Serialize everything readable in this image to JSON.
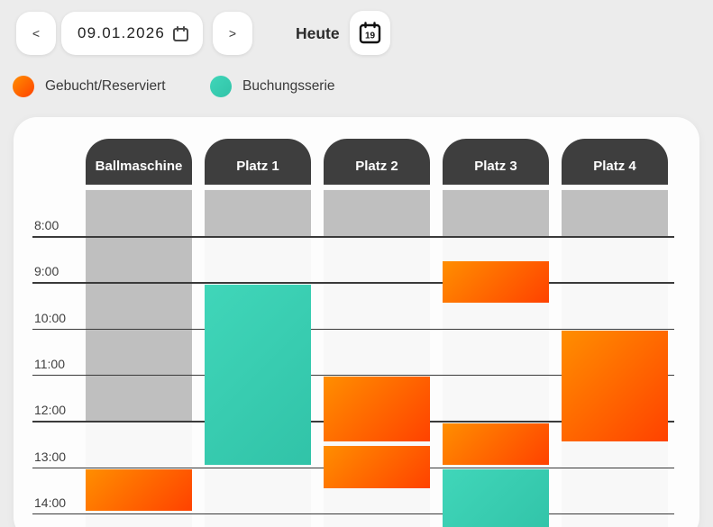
{
  "topbar": {
    "prev_label": "<",
    "next_label": ">",
    "date_value": "09.01.2026",
    "today_label": "Heute",
    "today_day_number": "19"
  },
  "legend": {
    "items": [
      {
        "label": "Gebucht/Reserviert",
        "kind": "booked"
      },
      {
        "label": "Buchungsserie",
        "kind": "series"
      }
    ]
  },
  "schedule": {
    "columns": [
      {
        "label": "Ballmaschine"
      },
      {
        "label": "Platz 1"
      },
      {
        "label": "Platz 2"
      },
      {
        "label": "Platz 3"
      },
      {
        "label": "Platz 4"
      }
    ],
    "time_labels": [
      "8:00",
      "9:00",
      "10:00",
      "11:00",
      "12:00",
      "13:00",
      "14:00"
    ],
    "blocks": [
      {
        "column": 0,
        "kind": "blocked",
        "start": "07:00",
        "end": "12:00"
      },
      {
        "column": 0,
        "kind": "booked",
        "start": "13:00",
        "end": "14:00"
      },
      {
        "column": 1,
        "kind": "blocked",
        "start": "07:00",
        "end": "08:00"
      },
      {
        "column": 1,
        "kind": "series",
        "start": "09:00",
        "end": "13:00"
      },
      {
        "column": 2,
        "kind": "blocked",
        "start": "07:00",
        "end": "08:00"
      },
      {
        "column": 2,
        "kind": "booked",
        "start": "11:00",
        "end": "12:30"
      },
      {
        "column": 2,
        "kind": "booked",
        "start": "12:30",
        "end": "13:30"
      },
      {
        "column": 3,
        "kind": "blocked",
        "start": "07:00",
        "end": "08:00"
      },
      {
        "column": 3,
        "kind": "booked",
        "start": "08:30",
        "end": "09:30"
      },
      {
        "column": 3,
        "kind": "booked",
        "start": "12:00",
        "end": "13:00"
      },
      {
        "column": 3,
        "kind": "series",
        "start": "13:00",
        "end": null
      },
      {
        "column": 4,
        "kind": "blocked",
        "start": "07:00",
        "end": "08:00"
      },
      {
        "column": 4,
        "kind": "booked",
        "start": "10:00",
        "end": "12:30"
      }
    ],
    "colors": {
      "blocked": "#bfbfbf",
      "booked_start": "#ff8e00",
      "booked_end": "#ff4200",
      "series_start": "#40d6b9",
      "series_end": "#31c3a8"
    }
  }
}
